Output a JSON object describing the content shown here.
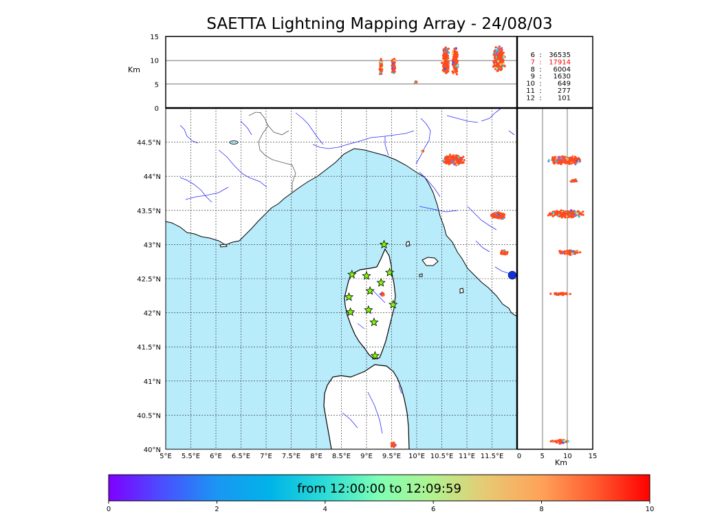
{
  "title": "SAETTA Lightning Mapping Array - 24/08/03",
  "colors": {
    "sea": "#b8ecfb",
    "land": "#ffffff",
    "river": "#2b2bff",
    "coast": "#000000",
    "border": "#555555",
    "grid": "#222222",
    "lightning": "#ff4a1e",
    "station": "#7ffc00",
    "highlight_count": "#ff0000"
  },
  "top_panel": {
    "y_label": "Km",
    "y_ticks": [
      "15",
      "10",
      "5",
      "0"
    ],
    "stats": [
      {
        "k": "6",
        "sep": ":",
        "v": "36535",
        "highlight": false
      },
      {
        "k": "7",
        "sep": ":",
        "v": "17914",
        "highlight": true
      },
      {
        "k": "8",
        "sep": ":",
        "v": "6004",
        "highlight": false
      },
      {
        "k": "9",
        "sep": ":",
        "v": "1630",
        "highlight": false
      },
      {
        "k": "10",
        "sep": ":",
        "v": "649",
        "highlight": false
      },
      {
        "k": "11",
        "sep": ":",
        "v": "277",
        "highlight": false
      },
      {
        "k": "12",
        "sep": ":",
        "v": "101",
        "highlight": false
      }
    ]
  },
  "map": {
    "lat_ticks": [
      "44.5°N",
      "44°N",
      "43.5°N",
      "43°N",
      "42.5°N",
      "42°N",
      "41.5°N",
      "41°N",
      "40.5°N",
      "40°N"
    ],
    "lon_ticks": [
      "5°E",
      "5.5°E",
      "6°E",
      "6.5°E",
      "7°E",
      "7.5°E",
      "8°E",
      "8.5°E",
      "9°E",
      "9.5°E",
      "10°E",
      "10.5°E",
      "11°E",
      "11.5°E"
    ],
    "lon_range": [
      5.0,
      12.0
    ],
    "lat_range": [
      40.0,
      45.0
    ],
    "stations": [
      {
        "lon": 9.35,
        "lat": 43.0
      },
      {
        "lon": 8.71,
        "lat": 42.56
      },
      {
        "lon": 9.0,
        "lat": 42.54
      },
      {
        "lon": 9.46,
        "lat": 42.59
      },
      {
        "lon": 9.29,
        "lat": 42.44
      },
      {
        "lon": 9.07,
        "lat": 42.32
      },
      {
        "lon": 8.65,
        "lat": 42.23
      },
      {
        "lon": 9.53,
        "lat": 42.12
      },
      {
        "lon": 9.04,
        "lat": 42.04
      },
      {
        "lon": 8.68,
        "lat": 42.01
      },
      {
        "lon": 9.15,
        "lat": 41.86
      },
      {
        "lon": 9.17,
        "lat": 41.37
      }
    ]
  },
  "side_panel": {
    "x_label": "Km",
    "x_ticks": [
      "0",
      "5",
      "10",
      "15"
    ]
  },
  "colorbar": {
    "label": "from 12:00:00 to 12:09:59",
    "ticks": [
      "0",
      "2",
      "4",
      "6",
      "8",
      "10"
    ]
  }
}
